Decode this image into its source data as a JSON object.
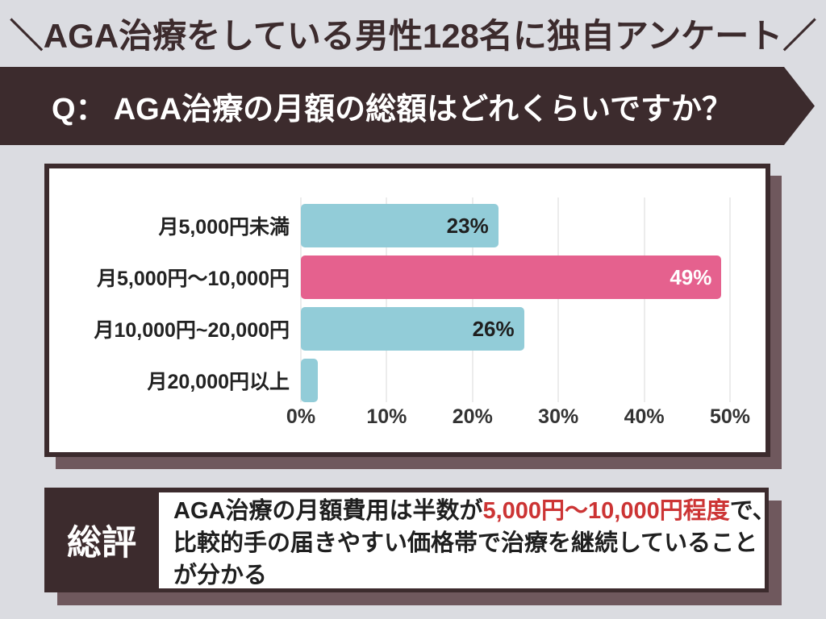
{
  "header": {
    "title": "＼AGA治療をしている男性128名に独自アンケート／"
  },
  "question_banner": {
    "label": "Q： AGA治療の月額の総額はどれくらいですか？"
  },
  "chart_data": {
    "type": "bar",
    "orientation": "horizontal",
    "categories": [
      "月5,000円未満",
      "月5,000円〜10,000円",
      "月10,000円~20,000円",
      "月20,000円以上"
    ],
    "values": [
      23,
      49,
      26,
      2
    ],
    "value_labels": [
      "23%",
      "49%",
      "26%",
      ""
    ],
    "highlight_index": 1,
    "x_ticks": [
      "0%",
      "10%",
      "20%",
      "30%",
      "40%",
      "50%"
    ],
    "xlim": [
      0,
      50
    ],
    "grid": true,
    "bar_color": "#92ccd8",
    "highlight_color": "#e5618e"
  },
  "summary": {
    "label": "総評",
    "line1_part1": "AGA治療の月額費用は半数が",
    "line1_highlight": "5,000円〜10,000円程度",
    "line1_part2": "で、",
    "line2": "比較的手の届きやすい価格帯で治療を継続していること",
    "line3": "が分かる"
  },
  "colors": {
    "page_background": "#dbdce1",
    "brand_dark_brown": "#3c2b2d",
    "shadow_mauve": "#6f585d",
    "bar_teal": "#92ccd8",
    "bar_pink": "#e5618e",
    "summary_highlight_red": "#cc3434"
  }
}
